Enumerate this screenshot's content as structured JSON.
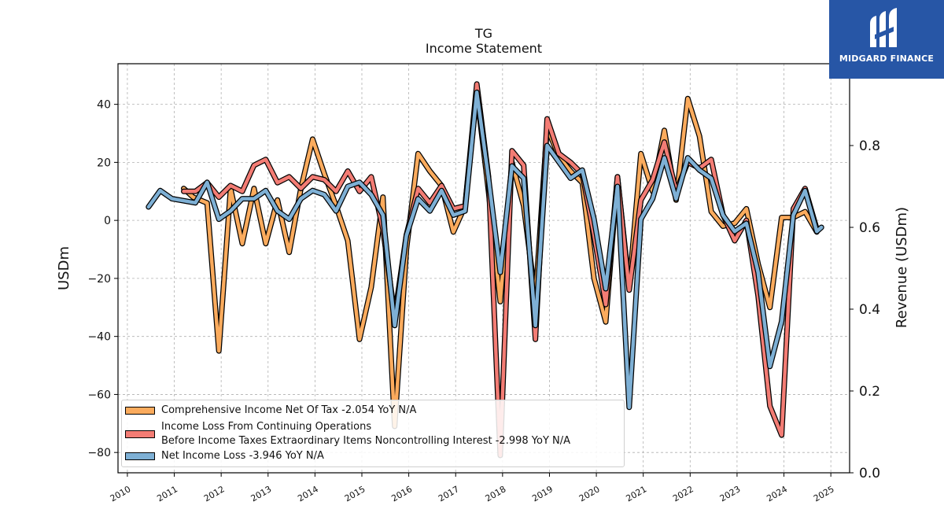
{
  "header": {
    "ticker": "TG",
    "subtitle": "Income Statement"
  },
  "logo": {
    "text": "MIDGARD FINANCE",
    "background": "#2756a6"
  },
  "chart_data": {
    "type": "line",
    "title": "TG",
    "subtitle": "Income Statement",
    "ylabel": "USDm",
    "y2label": "Revenue (USDm)",
    "xlim": [
      2009.8,
      2025.4
    ],
    "ylim": [
      -87,
      54
    ],
    "y2lim": [
      0.0,
      1.0
    ],
    "yticks": [
      -80,
      -60,
      -40,
      -20,
      0,
      20,
      40
    ],
    "y2ticks": [
      0.0,
      0.2,
      0.4,
      0.6,
      0.8
    ],
    "xticks": [
      2010,
      2011,
      2012,
      2013,
      2014,
      2015,
      2016,
      2017,
      2018,
      2019,
      2020,
      2021,
      2022,
      2023,
      2024,
      2025
    ],
    "grid": true,
    "legend_position": "lower-left",
    "series": [
      {
        "name": "Comprehensive Income Net Of Tax",
        "legend_label": "Comprehensive Income Net Of Tax  -2.054 YoY N/A",
        "color": "#fbab5d",
        "axis": "left",
        "x": [
          2011.2,
          2011.4,
          2011.7,
          2011.95,
          2012.2,
          2012.45,
          2012.7,
          2012.95,
          2013.2,
          2013.45,
          2013.7,
          2013.95,
          2014.2,
          2014.45,
          2014.7,
          2014.95,
          2015.2,
          2015.45,
          2015.7,
          2015.95,
          2016.2,
          2016.45,
          2016.7,
          2016.95,
          2017.2,
          2017.45,
          2017.7,
          2017.95,
          2018.2,
          2018.45,
          2018.7,
          2018.95,
          2019.2,
          2019.45,
          2019.7,
          2019.95,
          2020.2,
          2020.45,
          2020.7,
          2020.95,
          2021.2,
          2021.45,
          2021.7,
          2021.95,
          2022.2,
          2022.45,
          2022.7,
          2022.95,
          2023.2,
          2023.45,
          2023.7,
          2023.95,
          2024.2,
          2024.45,
          2024.7
        ],
        "y": [
          11,
          8,
          6,
          -45,
          11,
          -8,
          11,
          -8,
          7,
          -11,
          11,
          28,
          16,
          5,
          -7,
          -41,
          -23,
          8,
          -71,
          -10,
          23,
          17,
          12,
          -4,
          5,
          44,
          10,
          -28,
          20,
          5,
          -27,
          32,
          22,
          17,
          13,
          -20,
          -35,
          15,
          -23,
          23,
          10,
          31,
          7,
          42,
          29,
          3,
          -2,
          -1,
          4,
          -15,
          -30,
          1,
          1,
          3,
          -4
        ]
      },
      {
        "name": "Income Loss From Continuing Operations Before Income Taxes Extraordinary Items Noncontrolling Interest",
        "legend_label": "Income Loss From Continuing Operations\nBefore Income Taxes Extraordinary Items Noncontrolling Interest  -2.998 YoY N/A",
        "color": "#f37c74",
        "axis": "left",
        "x": [
          2011.2,
          2011.45,
          2011.7,
          2011.95,
          2012.2,
          2012.45,
          2012.7,
          2012.95,
          2013.2,
          2013.45,
          2013.7,
          2013.95,
          2014.2,
          2014.45,
          2014.7,
          2014.95,
          2015.2,
          2015.45,
          2015.7,
          2015.95,
          2016.2,
          2016.45,
          2016.7,
          2016.95,
          2017.2,
          2017.45,
          2017.7,
          2017.95,
          2018.2,
          2018.45,
          2018.7,
          2018.95,
          2019.2,
          2019.45,
          2019.7,
          2019.95,
          2020.2,
          2020.45,
          2020.7,
          2020.95,
          2021.2,
          2021.45,
          2021.7,
          2021.95,
          2022.2,
          2022.45,
          2022.7,
          2022.95,
          2023.2,
          2023.45,
          2023.7,
          2023.95,
          2024.2,
          2024.45,
          2024.7
        ],
        "y": [
          10,
          10,
          13,
          8,
          12,
          10,
          19,
          21,
          13,
          15,
          11,
          15,
          14,
          10,
          17,
          10,
          15,
          -3,
          -33,
          -5,
          11,
          6,
          12,
          4,
          5,
          47,
          15,
          -81,
          24,
          19,
          -41,
          35,
          23,
          20,
          16,
          -5,
          -29,
          15,
          -24,
          7,
          14,
          27,
          10,
          20,
          18,
          21,
          2,
          -7,
          0,
          -26,
          -64,
          -74,
          4,
          11,
          -3
        ]
      },
      {
        "name": "Net Income Loss",
        "legend_label": "Net Income Loss  -3.946 YoY N/A",
        "color": "#7eb0d5",
        "axis": "right",
        "x": [
          2010.45,
          2010.7,
          2010.95,
          2011.2,
          2011.45,
          2011.7,
          2011.95,
          2012.2,
          2012.45,
          2012.7,
          2012.95,
          2013.2,
          2013.45,
          2013.7,
          2013.95,
          2014.2,
          2014.45,
          2014.7,
          2014.95,
          2015.2,
          2015.45,
          2015.7,
          2015.95,
          2016.2,
          2016.45,
          2016.7,
          2016.95,
          2017.2,
          2017.45,
          2017.7,
          2017.95,
          2018.2,
          2018.45,
          2018.7,
          2018.95,
          2019.2,
          2019.45,
          2019.7,
          2019.95,
          2020.2,
          2020.45,
          2020.7,
          2020.95,
          2021.2,
          2021.45,
          2021.7,
          2021.95,
          2022.2,
          2022.45,
          2022.7,
          2022.95,
          2023.2,
          2023.45,
          2023.7,
          2023.95,
          2024.2,
          2024.45,
          2024.7,
          2024.8
        ],
        "y": [
          0.65,
          0.69,
          0.67,
          0.665,
          0.66,
          0.71,
          0.62,
          0.64,
          0.67,
          0.67,
          0.69,
          0.64,
          0.62,
          0.67,
          0.69,
          0.68,
          0.64,
          0.7,
          0.71,
          0.68,
          0.63,
          0.36,
          0.58,
          0.67,
          0.64,
          0.69,
          0.63,
          0.64,
          0.93,
          0.72,
          0.49,
          0.75,
          0.72,
          0.36,
          0.8,
          0.76,
          0.72,
          0.74,
          0.62,
          0.45,
          0.7,
          0.16,
          0.62,
          0.67,
          0.77,
          0.67,
          0.77,
          0.74,
          0.72,
          0.63,
          0.59,
          0.61,
          0.49,
          0.26,
          0.37,
          0.63,
          0.69,
          0.59,
          0.6
        ]
      }
    ]
  }
}
